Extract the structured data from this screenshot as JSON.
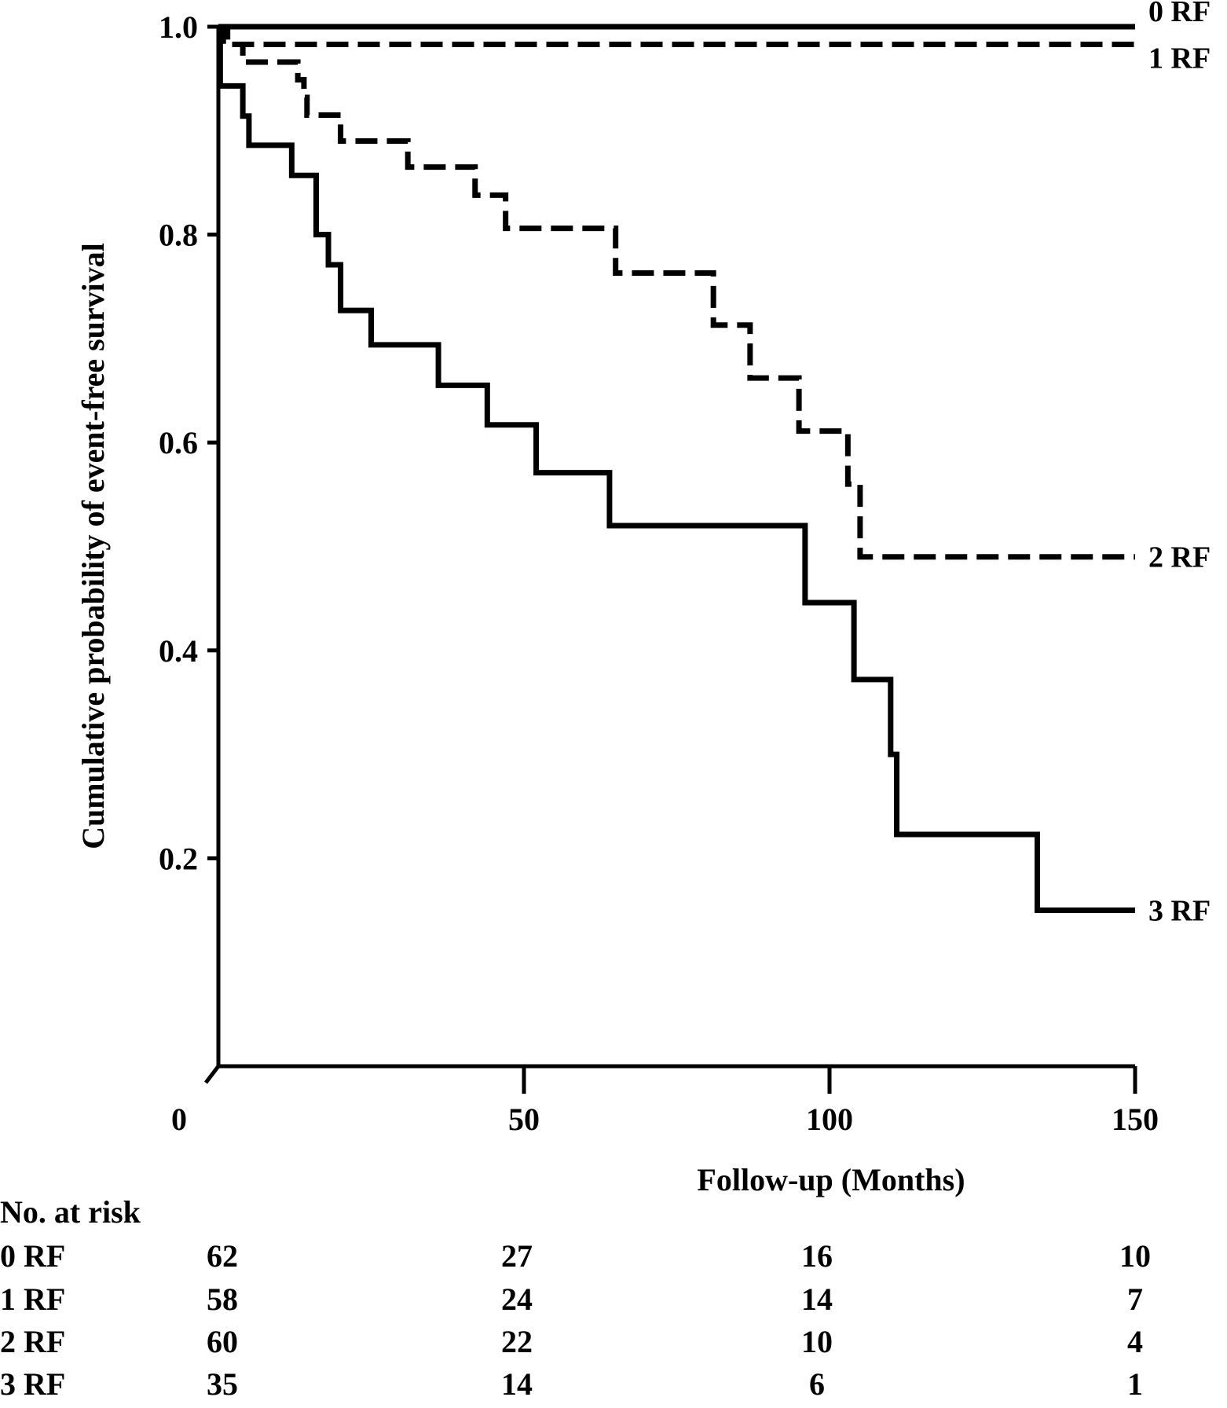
{
  "chart_data": {
    "type": "line",
    "subtype": "kaplan-meier step",
    "title": "",
    "xlabel": "Follow-up (Months)",
    "ylabel": "Cumulative probability of event-free survival",
    "xlim": [
      0,
      150
    ],
    "ylim": [
      0,
      1.0
    ],
    "x_ticks": [
      {
        "value": 0,
        "label": "0"
      },
      {
        "value": 50,
        "label": "50"
      },
      {
        "value": 100,
        "label": "100"
      },
      {
        "value": 150,
        "label": "150"
      }
    ],
    "y_ticks": [
      {
        "value": 0.2,
        "label": "0.2"
      },
      {
        "value": 0.4,
        "label": "0.4"
      },
      {
        "value": 0.6,
        "label": "0.6"
      },
      {
        "value": 0.8,
        "label": "0.8"
      },
      {
        "value": 1.0,
        "label": "1.0"
      }
    ],
    "grid": false,
    "series": [
      {
        "name": "0 RF",
        "label": "0 RF",
        "style": "solid",
        "steps": [
          [
            0,
            1.0
          ],
          [
            150,
            1.0
          ]
        ]
      },
      {
        "name": "1 RF",
        "label": "1 RF",
        "style": "dashed",
        "steps": [
          [
            0,
            1.0
          ],
          [
            0.8,
            0.983
          ],
          [
            150,
            0.983
          ]
        ]
      },
      {
        "name": "2 RF",
        "label": "2 RF",
        "style": "dashed",
        "steps": [
          [
            0,
            1.0
          ],
          [
            1.5,
            0.983
          ],
          [
            4,
            0.966
          ],
          [
            13,
            0.949
          ],
          [
            14,
            0.932
          ],
          [
            14.5,
            0.915
          ],
          [
            20,
            0.89
          ],
          [
            31,
            0.865
          ],
          [
            42,
            0.838
          ],
          [
            47,
            0.806
          ],
          [
            65,
            0.763
          ],
          [
            81,
            0.713
          ],
          [
            87,
            0.662
          ],
          [
            95,
            0.611
          ],
          [
            103,
            0.56
          ],
          [
            105,
            0.49
          ],
          [
            150,
            0.49
          ]
        ]
      },
      {
        "name": "3 RF",
        "label": "3 RF",
        "style": "solid",
        "steps": [
          [
            0,
            1.0
          ],
          [
            0.3,
            0.943
          ],
          [
            4,
            0.914
          ],
          [
            5,
            0.886
          ],
          [
            12,
            0.857
          ],
          [
            16,
            0.8
          ],
          [
            18,
            0.771
          ],
          [
            20,
            0.727
          ],
          [
            25,
            0.694
          ],
          [
            36,
            0.655
          ],
          [
            44,
            0.617
          ],
          [
            52,
            0.571
          ],
          [
            64,
            0.52
          ],
          [
            96,
            0.446
          ],
          [
            104,
            0.372
          ],
          [
            110,
            0.3
          ],
          [
            111,
            0.223
          ],
          [
            134,
            0.15
          ],
          [
            150,
            0.15
          ]
        ]
      }
    ],
    "risk_table": {
      "title": "No. at risk",
      "time_points": [
        0,
        50,
        100,
        150
      ],
      "rows": [
        {
          "label": "0 RF",
          "values": [
            "62",
            "27",
            "16",
            "10"
          ]
        },
        {
          "label": "1 RF",
          "values": [
            "58",
            "24",
            "14",
            "7"
          ]
        },
        {
          "label": "2 RF",
          "values": [
            "60",
            "22",
            "10",
            "4"
          ]
        },
        {
          "label": "3 RF",
          "values": [
            "35",
            "14",
            "6",
            "1"
          ]
        }
      ]
    }
  }
}
